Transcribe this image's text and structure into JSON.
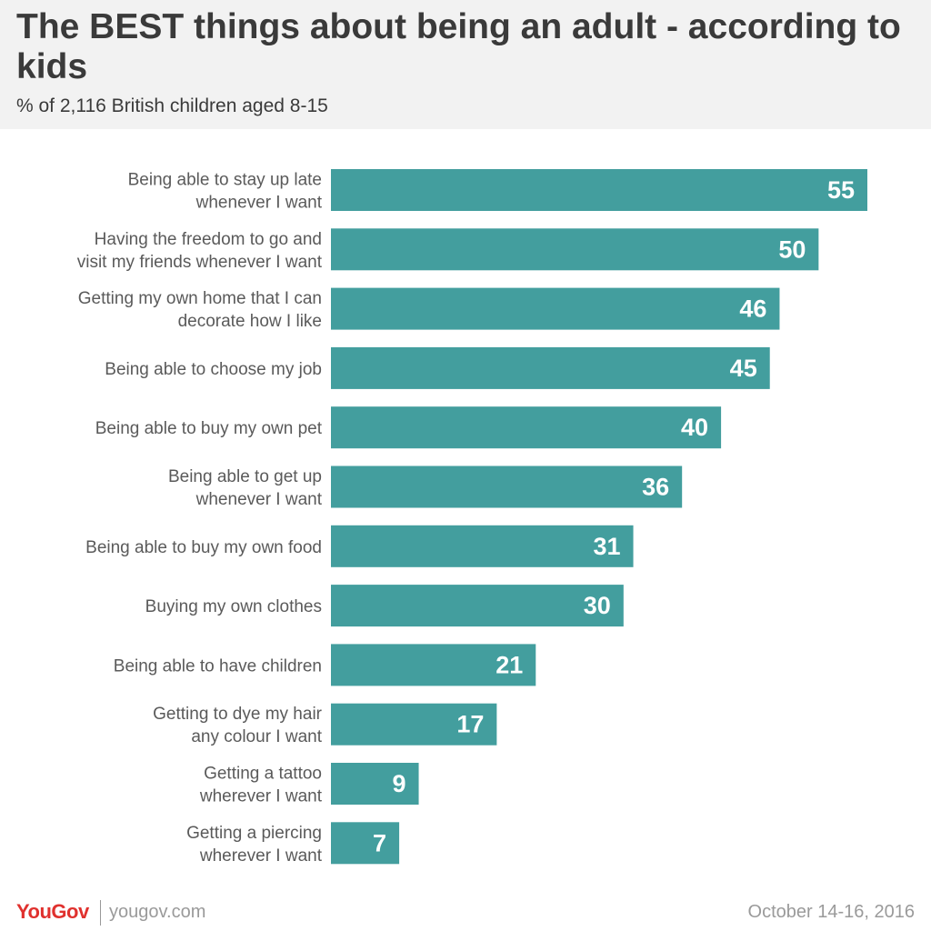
{
  "header": {
    "title": "The BEST things about being an adult - according to kids",
    "subtitle": "% of 2,116 British children aged 8-15"
  },
  "colors": {
    "bar": "#439e9e",
    "label_text": "#5a5a5a",
    "value_text": "#ffffff",
    "brand_red": "#e0312e"
  },
  "chart_data": {
    "type": "bar",
    "orientation": "horizontal",
    "categories": [
      [
        "Being able to stay up late",
        "whenever I want"
      ],
      [
        "Having the freedom to go and",
        "visit my friends whenever I want"
      ],
      [
        "Getting my own home that I can",
        "decorate how I like"
      ],
      [
        "Being able to choose my job"
      ],
      [
        "Being able to buy my own pet"
      ],
      [
        "Being able to get up",
        "whenever I want"
      ],
      [
        "Being able to buy my own food"
      ],
      [
        "Buying my own clothes"
      ],
      [
        "Being able to have children"
      ],
      [
        "Getting to dye my hair",
        "any colour I want"
      ],
      [
        "Getting a tattoo",
        "wherever I want"
      ],
      [
        "Getting a piercing",
        "wherever I want"
      ]
    ],
    "values": [
      55,
      50,
      46,
      45,
      40,
      36,
      31,
      30,
      21,
      17,
      9,
      7
    ],
    "data_labels": true,
    "grid": false,
    "legend": "none"
  },
  "footer": {
    "logo_you": "You",
    "logo_gov": "Gov",
    "site": "yougov.com",
    "date": "October 14-16, 2016"
  }
}
